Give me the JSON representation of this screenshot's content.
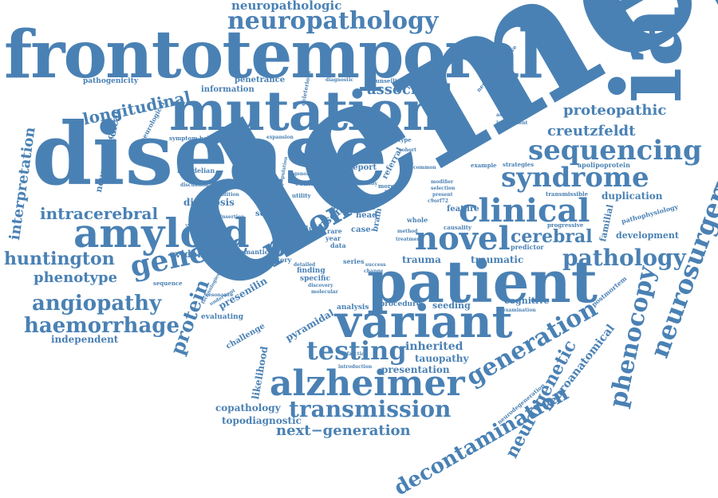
{
  "colors": {
    "text": "#4a81b4",
    "background": "#ffffff"
  },
  "words": [
    {
      "id": "dementia",
      "text": "dementia"
    },
    {
      "id": "disease",
      "text": "disease"
    },
    {
      "id": "frontotemporal",
      "text": "frontotemporal"
    },
    {
      "id": "mutation",
      "text": "mutation"
    },
    {
      "id": "ia",
      "text": "ia"
    },
    {
      "id": "patient",
      "text": "patient"
    },
    {
      "id": "variant",
      "text": "variant"
    },
    {
      "id": "alzheimer",
      "text": "alzheimer"
    },
    {
      "id": "amyloid",
      "text": "amyloid"
    },
    {
      "id": "clinical",
      "text": "clinical"
    },
    {
      "id": "neuropathology",
      "text": "neuropathology"
    },
    {
      "id": "neuropathologic",
      "text": "neuropathologic"
    },
    {
      "id": "sequencing",
      "text": "sequencing"
    },
    {
      "id": "syndrome",
      "text": "syndrome"
    },
    {
      "id": "prion",
      "text": "prion"
    },
    {
      "id": "genetic",
      "text": "genetic"
    },
    {
      "id": "novel",
      "text": "novel"
    },
    {
      "id": "cerebral",
      "text": "cerebral"
    },
    {
      "id": "pathology",
      "text": "pathology"
    },
    {
      "id": "testing",
      "text": "testing"
    },
    {
      "id": "transmission",
      "text": "transmission"
    },
    {
      "id": "generation",
      "text": "generation"
    },
    {
      "id": "neurosurgery",
      "text": "neurosurgery"
    },
    {
      "id": "phenocopy",
      "text": "phenocopy"
    },
    {
      "id": "decontamination",
      "text": "decontamination"
    },
    {
      "id": "neurogenetic",
      "text": "neurogenetic"
    },
    {
      "id": "neuroanatomical",
      "text": "neuroanatomical"
    },
    {
      "id": "haemorrhage",
      "text": "haemorrhage"
    },
    {
      "id": "angiopathy",
      "text": "angiopathy"
    },
    {
      "id": "huntington",
      "text": "huntington"
    },
    {
      "id": "phenotype",
      "text": "phenotype"
    },
    {
      "id": "intracerebral",
      "text": "intracerebral"
    },
    {
      "id": "interpretation",
      "text": "interpretation"
    },
    {
      "id": "longitudinal",
      "text": "longitudinal"
    },
    {
      "id": "proteopathic",
      "text": "proteopathic"
    },
    {
      "id": "creutzfeldt",
      "text": "creutzfeldt"
    },
    {
      "id": "associated",
      "text": "associated"
    },
    {
      "id": "protein",
      "text": "protein"
    },
    {
      "id": "next-generation",
      "text": "next−generation"
    },
    {
      "id": "inherited",
      "text": "inherited"
    },
    {
      "id": "tauopathy",
      "text": "tauopathy"
    },
    {
      "id": "presentation",
      "text": "presentation"
    },
    {
      "id": "copathology",
      "text": "copathology"
    },
    {
      "id": "topodiagnostic",
      "text": "topodiagnostic"
    },
    {
      "id": "independent",
      "text": "independent"
    },
    {
      "id": "diagnosis",
      "text": "diagnosis"
    },
    {
      "id": "evidence",
      "text": "evidence"
    },
    {
      "id": "panel",
      "text": "panel"
    },
    {
      "id": "duplication",
      "text": "duplication"
    },
    {
      "id": "development",
      "text": "development"
    },
    {
      "id": "traumatic",
      "text": "traumatic"
    },
    {
      "id": "trauma",
      "text": "trauma"
    },
    {
      "id": "cognitive",
      "text": "cognitive"
    },
    {
      "id": "seeding",
      "text": "seeding"
    },
    {
      "id": "procedure",
      "text": "procedure"
    },
    {
      "id": "analysis",
      "text": "analysis"
    },
    {
      "id": "presenilin",
      "text": "presenilin"
    },
    {
      "id": "likelihood",
      "text": "likelihood"
    },
    {
      "id": "pyramidal",
      "text": "pyramidal"
    },
    {
      "id": "challenge",
      "text": "challenge"
    },
    {
      "id": "evaluating",
      "text": "evaluating"
    },
    {
      "id": "medical",
      "text": "medical"
    },
    {
      "id": "neurosurgical",
      "text": "neurosurgical"
    },
    {
      "id": "neurological",
      "text": "neurological"
    },
    {
      "id": "pathogenicity",
      "text": "pathogenicity"
    },
    {
      "id": "information",
      "text": "information"
    },
    {
      "id": "penetrance",
      "text": "penetrance"
    },
    {
      "id": "deleterious",
      "text": "deleterious"
    },
    {
      "id": "diagnostic",
      "text": "diagnostic"
    },
    {
      "id": "counselling",
      "text": "counselling"
    },
    {
      "id": "neurodegenerative",
      "text": "neurodegenerative"
    },
    {
      "id": "assessment",
      "text": "assessment"
    },
    {
      "id": "impairment",
      "text": "impairment"
    },
    {
      "id": "strategies",
      "text": "strategies"
    },
    {
      "id": "apolipoprotein",
      "text": "apolipoprotein"
    },
    {
      "id": "transmissible",
      "text": "transmissible"
    },
    {
      "id": "familial",
      "text": "familial"
    },
    {
      "id": "pathophysiology",
      "text": "pathophysiology"
    },
    {
      "id": "progressive",
      "text": "progressive"
    },
    {
      "id": "predictor",
      "text": "predictor"
    },
    {
      "id": "postmortem",
      "text": "postmortem"
    },
    {
      "id": "examination",
      "text": "examination"
    },
    {
      "id": "neurodegeneration",
      "text": "neurodegeneration"
    },
    {
      "id": "feature",
      "text": "feature"
    },
    {
      "id": "causality",
      "text": "causality"
    },
    {
      "id": "example",
      "text": "example"
    },
    {
      "id": "genotype",
      "text": "genotype"
    },
    {
      "id": "referral",
      "text": "referral"
    },
    {
      "id": "report",
      "text": "report"
    },
    {
      "id": "literature",
      "text": "literature"
    },
    {
      "id": "result",
      "text": "result"
    },
    {
      "id": "more",
      "text": "more"
    },
    {
      "id": "ethic",
      "text": "ethic"
    },
    {
      "id": "head",
      "text": "head"
    },
    {
      "id": "brain",
      "text": "brain"
    },
    {
      "id": "case",
      "text": "case"
    },
    {
      "id": "injury",
      "text": "injury"
    },
    {
      "id": "psen",
      "text": "psen"
    },
    {
      "id": "rare",
      "text": "rare"
    },
    {
      "id": "year",
      "text": "year"
    },
    {
      "id": "data",
      "text": "data"
    },
    {
      "id": "series",
      "text": "series"
    },
    {
      "id": "history",
      "text": "history"
    },
    {
      "id": "semantic",
      "text": "semantic"
    },
    {
      "id": "family",
      "text": "family"
    },
    {
      "id": "seizure",
      "text": "seizure"
    },
    {
      "id": "practice",
      "text": "practice"
    },
    {
      "id": "condition",
      "text": "condition"
    },
    {
      "id": "mendelian",
      "text": "mendelian"
    },
    {
      "id": "symptom-behavioral",
      "text": "symptom behavioral"
    },
    {
      "id": "expansion",
      "text": "expansion"
    },
    {
      "id": "control",
      "text": "control"
    },
    {
      "id": "population",
      "text": "population"
    },
    {
      "id": "imaging",
      "text": "imaging"
    },
    {
      "id": "discussion",
      "text": "discussion"
    },
    {
      "id": "sequence",
      "text": "sequence"
    },
    {
      "id": "finding",
      "text": "finding"
    },
    {
      "id": "specific",
      "text": "specific"
    },
    {
      "id": "infarction",
      "text": "infarction"
    },
    {
      "id": "introduction",
      "text": "introduction"
    },
    {
      "id": "molecular",
      "text": "molecular"
    },
    {
      "id": "discovery",
      "text": "discovery"
    },
    {
      "id": "technologies",
      "text": "technologies"
    },
    {
      "id": "underwent",
      "text": "underwent"
    },
    {
      "id": "resonance",
      "text": "resonance"
    },
    {
      "id": "insertion",
      "text": "insertion"
    },
    {
      "id": "common",
      "text": "common"
    },
    {
      "id": "selection",
      "text": "selection"
    },
    {
      "id": "present",
      "text": "present"
    },
    {
      "id": "whole",
      "text": "whole"
    },
    {
      "id": "c9orf72",
      "text": "c9orf72"
    },
    {
      "id": "method",
      "text": "method"
    },
    {
      "id": "treatment",
      "text": "treatment"
    },
    {
      "id": "change",
      "text": "change"
    },
    {
      "id": "success",
      "text": "success"
    },
    {
      "id": "causing",
      "text": "causing"
    },
    {
      "id": "utility",
      "text": "utility"
    },
    {
      "id": "lower",
      "text": "lower"
    },
    {
      "id": "cohort",
      "text": "cohort"
    },
    {
      "id": "healthy",
      "text": "healthy"
    },
    {
      "id": "modifier",
      "text": "modifier"
    },
    {
      "id": "genome",
      "text": "genome"
    },
    {
      "id": "detailed",
      "text": "detailed"
    }
  ]
}
